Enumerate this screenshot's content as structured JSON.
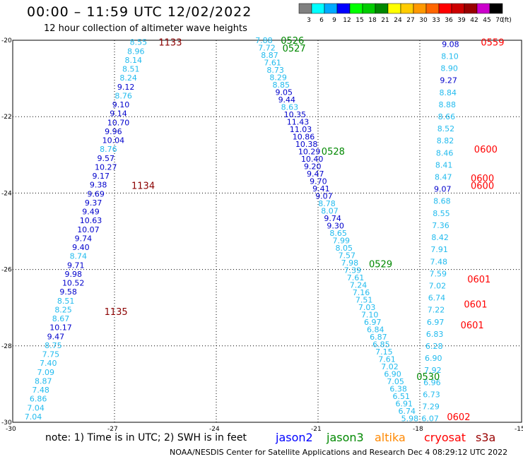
{
  "title": "00:00 – 11:59 UTC 12/02/2022",
  "subtitle": "12 hour collection of altimeter wave heights",
  "note": "note:  1) Time is in UTC;  2) SWH is in feet",
  "legend": [
    {
      "name": "jason2",
      "color": "#0000ff"
    },
    {
      "name": "jason3",
      "color": "#008800"
    },
    {
      "name": "altika",
      "color": "#ff8800"
    },
    {
      "name": "cryosat",
      "color": "#ff0000"
    },
    {
      "name": "s3a",
      "color": "#990000"
    }
  ],
  "footer": "NOAA/NESDIS Center for Satellite Applications and Research    Dec  4 08:29:12 UTC 2022",
  "colorbar": {
    "labels": [
      "3",
      "6",
      "9",
      "12",
      "15",
      "18",
      "21",
      "24",
      "27",
      "30",
      "33",
      "36",
      "39",
      "42",
      "45",
      "70"
    ],
    "unit": "(ft)",
    "colors": [
      "#808080",
      "#00ffff",
      "#00aaff",
      "#0000ff",
      "#00ff00",
      "#00cc00",
      "#008800",
      "#ffff00",
      "#ffcc00",
      "#ff9900",
      "#ff6600",
      "#ff0000",
      "#cc0000",
      "#990000",
      "#cc00cc",
      "#000000"
    ]
  },
  "chart_data": {
    "type": "scatter",
    "xlim": [
      -30,
      -15
    ],
    "ylim": [
      -30,
      -20
    ],
    "xticks": [
      -30,
      -27,
      -24,
      -21,
      -18,
      -15
    ],
    "yticks": [
      -20,
      -22,
      -24,
      -26,
      -28,
      -30
    ],
    "grid": "dotted",
    "track_colors": {
      "light": "#22bbee",
      "dark": "#0000cc",
      "time_s3a": "#8b0000",
      "time_jason3": "#008800",
      "time_cryosat": "#ff0000"
    },
    "tracks": [
      {
        "name": "track-a",
        "values": [
          "8.55",
          "8.96",
          "8.14",
          "8.51",
          "8.24",
          "9.12",
          "8.76",
          "9.10",
          "9.14",
          "10.70",
          "9.96",
          "10.04",
          "8.76",
          "9.57",
          "10.27",
          "9.17",
          "9.38",
          "9.69",
          "9.37",
          "9.49",
          "10.63",
          "10.07",
          "9.74",
          "9.40",
          "8.74",
          "9.71",
          "9.98",
          "10.52",
          "9.58",
          "8.51",
          "8.25",
          "8.67",
          "10.17",
          "9.47",
          "8.75",
          "7.75",
          "7.40",
          "7.09",
          "8.87",
          "7.48",
          "6.86",
          "7.04",
          "7.04"
        ],
        "start": [
          -26.3,
          -20.05
        ],
        "end": [
          -29.4,
          -29.85
        ],
        "times": [
          {
            "label": "1133",
            "x": -25.7,
            "y": -20.05,
            "color": "time_s3a"
          },
          {
            "label": "1134",
            "x": -26.5,
            "y": -23.8,
            "color": "time_s3a"
          },
          {
            "label": "1135",
            "x": -27.3,
            "y": -27.1,
            "color": "time_s3a"
          }
        ]
      },
      {
        "name": "track-b",
        "values": [
          "7.88",
          "7.72",
          "8.87",
          "7.61",
          "8.73",
          "8.29",
          "8.85",
          "9.05",
          "9.44",
          "8.63",
          "10.35",
          "11.43",
          "11.03",
          "10.86",
          "10.38",
          "10.29",
          "10.40",
          "9.20",
          "9.47",
          "9.70",
          "9.41",
          "9.07",
          "8.78",
          "8.07",
          "9.74",
          "9.30",
          "8.65",
          "7.99",
          "8.05",
          "7.57",
          "7.98",
          "7.39",
          "7.61",
          "7.24",
          "7.16",
          "7.51",
          "7.03",
          "7.10",
          "6.97",
          "6.84",
          "6.87",
          "6.85",
          "7.15",
          "7.61",
          "7.02",
          "6.90",
          "7.05",
          "6.38",
          "6.51",
          "6.91",
          "6.74",
          "5.98"
        ],
        "start": [
          -22.6,
          -20.0
        ],
        "end": [
          -18.3,
          -29.9
        ],
        "times": [
          {
            "label": "0526",
            "x": -22.1,
            "y": -20.0,
            "color": "time_jason3"
          },
          {
            "label": "0527",
            "x": -22.05,
            "y": -20.2,
            "color": "time_jason3"
          },
          {
            "label": "0528",
            "x": -20.9,
            "y": -22.9,
            "color": "time_jason3"
          },
          {
            "label": "0529",
            "x": -19.5,
            "y": -25.85,
            "color": "time_jason3"
          },
          {
            "label": "0530",
            "x": -18.1,
            "y": -28.8,
            "color": "time_jason3"
          }
        ]
      },
      {
        "name": "track-c",
        "values": [
          "9.08",
          "8.10",
          "8.90",
          "9.27",
          "8.84",
          "8.88",
          "8.66",
          "8.52",
          "8.82",
          "8.46",
          "8.41",
          "8.47",
          "9.07",
          "8.68",
          "8.55",
          "7.36",
          "8.42",
          "7.91",
          "7.48",
          "7.59",
          "7.02",
          "6.74",
          "7.22",
          "6.97",
          "6.83",
          "6.28",
          "6.90",
          "7.92",
          "6.96",
          "6.73",
          "7.29",
          "6.07"
        ],
        "start": [
          -17.1,
          -20.1
        ],
        "end": [
          -17.7,
          -29.9
        ],
        "times": [
          {
            "label": "0559",
            "x": -16.2,
            "y": -20.05,
            "color": "time_cryosat"
          },
          {
            "label": "0600",
            "x": -16.4,
            "y": -22.85,
            "color": "time_cryosat"
          },
          {
            "label": "0600",
            "x": -16.5,
            "y": -23.6,
            "color": "time_cryosat"
          },
          {
            "label": "0600",
            "x": -16.5,
            "y": -23.8,
            "color": "time_cryosat"
          },
          {
            "label": "0601",
            "x": -16.6,
            "y": -26.25,
            "color": "time_cryosat"
          },
          {
            "label": "0601",
            "x": -16.7,
            "y": -26.9,
            "color": "time_cryosat"
          },
          {
            "label": "0601",
            "x": -16.8,
            "y": -27.45,
            "color": "time_cryosat"
          },
          {
            "label": "0602",
            "x": -17.2,
            "y": -29.85,
            "color": "time_cryosat"
          }
        ]
      }
    ]
  }
}
